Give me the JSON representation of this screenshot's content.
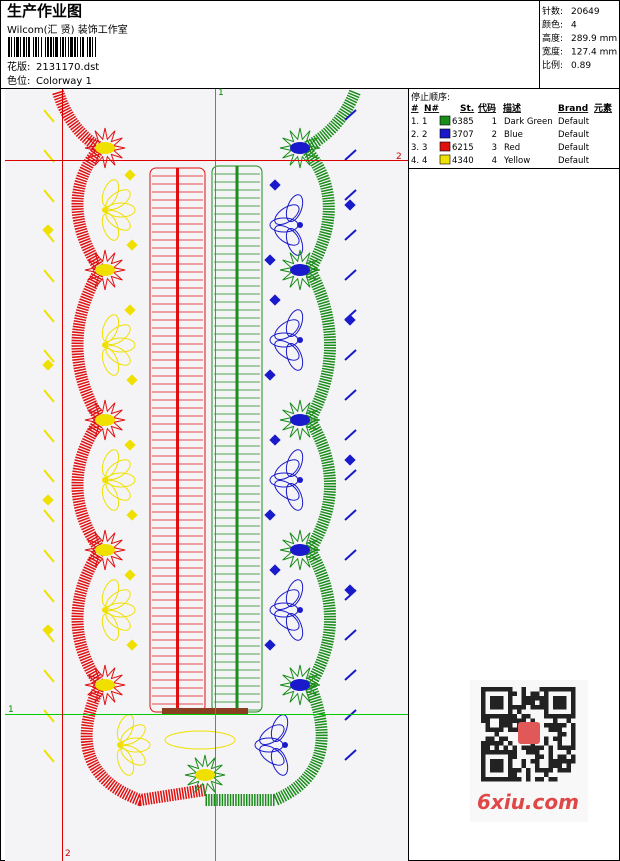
{
  "header": {
    "title": "生产作业图",
    "studio": "Wilcom(汇 贤) 装饰工作室",
    "design_label": "花版:",
    "design_value": "2131170.dst",
    "colorway_label": "色位:",
    "colorway_value": "Colorway 1"
  },
  "stats": [
    {
      "label": "针数:",
      "value": "20649"
    },
    {
      "label": "颜色:",
      "value": "4"
    },
    {
      "label": "高度:",
      "value": "289.9 mm"
    },
    {
      "label": "宽度:",
      "value": "127.4 mm"
    },
    {
      "label": "比例:",
      "value": "0.89"
    }
  ],
  "stop_sequence": {
    "title": "停止顺序:",
    "columns": [
      "#",
      "N#",
      "St.",
      "代码",
      "描述",
      "Brand",
      "元素"
    ],
    "rows": [
      {
        "order": "1.",
        "needle": "1",
        "color": "#1a8c1a",
        "stitches": "6385",
        "code": "1",
        "description": "Dark Green",
        "brand": "Default"
      },
      {
        "order": "2.",
        "needle": "2",
        "color": "#1a1acc",
        "stitches": "3707",
        "code": "2",
        "description": "Blue",
        "brand": "Default"
      },
      {
        "order": "3.",
        "needle": "3",
        "color": "#e01010",
        "stitches": "6215",
        "code": "3",
        "description": "Red",
        "brand": "Default"
      },
      {
        "order": "4.",
        "needle": "4",
        "color": "#f0e000",
        "stitches": "4340",
        "code": "4",
        "description": "Yellow",
        "brand": "Default"
      }
    ]
  },
  "guides": [
    "1",
    "2",
    "1",
    "2"
  ],
  "watermark": "6xiu.com"
}
